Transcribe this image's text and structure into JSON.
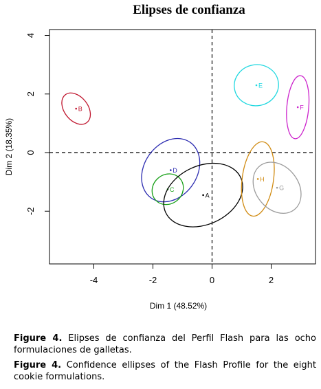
{
  "chart_data": {
    "type": "scatter",
    "title": "Elipses de confianza",
    "xlabel": "Dim 1 (48.52%)",
    "ylabel": "Dim 2 (18.35%)",
    "xlim": [
      -5.5,
      3.5
    ],
    "ylim": [
      -3.8,
      4.2
    ],
    "xticks": [
      -4,
      -2,
      0,
      2
    ],
    "yticks": [
      -2,
      0,
      2,
      4
    ],
    "grid": false,
    "reference_lines": {
      "x": 0,
      "y": 0,
      "style": "dashed"
    },
    "points": [
      {
        "label": "B",
        "x": -4.6,
        "y": 1.5,
        "color": "#c01830",
        "ellipse": {
          "rx": 0.4,
          "ry": 0.6,
          "angle": -38
        }
      },
      {
        "label": "D",
        "x": -1.4,
        "y": -0.6,
        "color": "#2b2bb0",
        "ellipse": {
          "rx": 1.15,
          "ry": 0.9,
          "angle": -55
        }
      },
      {
        "label": "C",
        "x": -1.5,
        "y": -1.25,
        "color": "#18a018",
        "ellipse": {
          "rx": 0.55,
          "ry": 0.5,
          "angle": -40
        }
      },
      {
        "label": "A",
        "x": -0.3,
        "y": -1.45,
        "color": "#000000",
        "ellipse": {
          "rx": 1.4,
          "ry": 1.0,
          "angle": -25
        }
      },
      {
        "label": "E",
        "x": 1.5,
        "y": 2.3,
        "color": "#20d8e0",
        "ellipse": {
          "rx": 0.75,
          "ry": 0.7,
          "angle": -10
        }
      },
      {
        "label": "F",
        "x": 2.9,
        "y": 1.55,
        "color": "#cc22cc",
        "ellipse": {
          "rx": 0.37,
          "ry": 1.08,
          "angle": 5
        }
      },
      {
        "label": "H",
        "x": 1.55,
        "y": -0.9,
        "color": "#d08a10",
        "ellipse": {
          "rx": 0.53,
          "ry": 1.28,
          "angle": 8
        }
      },
      {
        "label": "G",
        "x": 2.2,
        "y": -1.2,
        "color": "#9a9a9a",
        "ellipse": {
          "rx": 0.72,
          "ry": 0.95,
          "angle": -38
        }
      }
    ]
  },
  "captions": {
    "es_label": "Figure 4.",
    "es_text": " Elipses de confianza del Perfil Flash para las ocho formulaciones de galletas.",
    "en_label": "Figure 4.",
    "en_text": "  Confidence ellipses of the Flash Profile for the eight cookie formulations."
  }
}
